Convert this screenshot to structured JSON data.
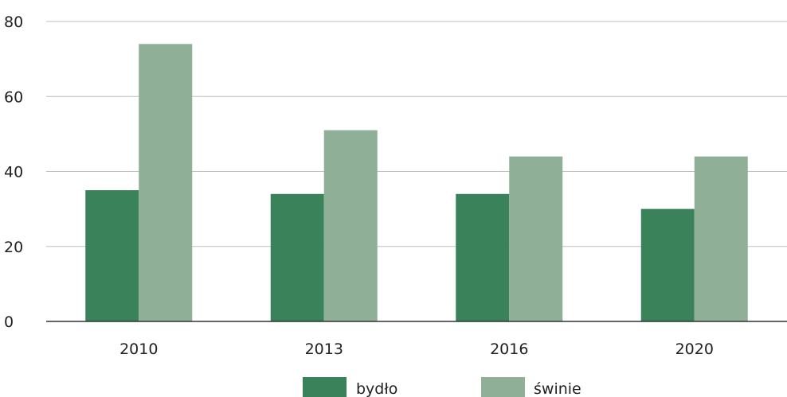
{
  "chart_data": {
    "type": "bar",
    "categories": [
      "2010",
      "2013",
      "2016",
      "2020"
    ],
    "series": [
      {
        "name": "bydło",
        "values": [
          35,
          34,
          34,
          30
        ],
        "color": "#3a835a"
      },
      {
        "name": "świnie",
        "values": [
          74,
          51,
          44,
          44
        ],
        "color": "#8fb096"
      }
    ],
    "ylim": [
      0,
      80
    ],
    "yticks": [
      "0",
      "20",
      "40",
      "60",
      "80"
    ],
    "grid": true,
    "legend_position": "bottom-center",
    "title": "",
    "xlabel": "",
    "ylabel": ""
  }
}
